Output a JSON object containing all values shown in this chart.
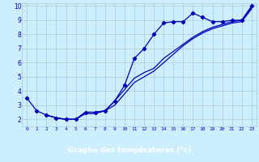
{
  "xlabel": "Graphe des températures (°c)",
  "bg_color": "#cceeff",
  "grid_color": "#aacccc",
  "line_color": "#0000bb",
  "axis_label_bg": "#0000aa",
  "axis_label_fg": "#ffffff",
  "xmin": -0.5,
  "xmax": 23.5,
  "ymin": 1.5,
  "ymax": 10.2,
  "yticks": [
    2,
    3,
    4,
    5,
    6,
    7,
    8,
    9,
    10
  ],
  "xticks": [
    0,
    1,
    2,
    3,
    4,
    5,
    6,
    7,
    8,
    9,
    10,
    11,
    12,
    13,
    14,
    15,
    16,
    17,
    18,
    19,
    20,
    21,
    22,
    23
  ],
  "line1_x": [
    0,
    1,
    2,
    3,
    4,
    5,
    6,
    7,
    8,
    9,
    10,
    11,
    12,
    13,
    14,
    15,
    16,
    17,
    18,
    19,
    20,
    21,
    22,
    23
  ],
  "line1_y": [
    3.5,
    2.6,
    2.3,
    2.1,
    2.0,
    2.0,
    2.5,
    2.5,
    2.6,
    3.3,
    4.4,
    6.3,
    7.0,
    8.0,
    8.8,
    8.9,
    8.9,
    9.5,
    9.2,
    8.9,
    8.9,
    9.0,
    9.0,
    10.0
  ],
  "line2_x": [
    2,
    3,
    4,
    5,
    6,
    7,
    8,
    9,
    10,
    11,
    12,
    13,
    14,
    15,
    16,
    17,
    18,
    19,
    20,
    21,
    22,
    23
  ],
  "line2_y": [
    2.3,
    2.1,
    2.0,
    2.0,
    2.5,
    2.5,
    2.6,
    3.3,
    4.1,
    4.9,
    5.3,
    5.6,
    6.3,
    6.8,
    7.3,
    7.8,
    8.2,
    8.5,
    8.7,
    8.9,
    9.0,
    9.9
  ],
  "line3_x": [
    2,
    3,
    4,
    5,
    6,
    7,
    8,
    9,
    10,
    11,
    12,
    13,
    14,
    15,
    16,
    17,
    18,
    19,
    20,
    21,
    22,
    23
  ],
  "line3_y": [
    2.3,
    2.1,
    2.0,
    2.0,
    2.4,
    2.4,
    2.6,
    3.0,
    3.8,
    4.6,
    5.0,
    5.4,
    6.0,
    6.6,
    7.2,
    7.7,
    8.1,
    8.4,
    8.6,
    8.8,
    8.9,
    9.8
  ]
}
